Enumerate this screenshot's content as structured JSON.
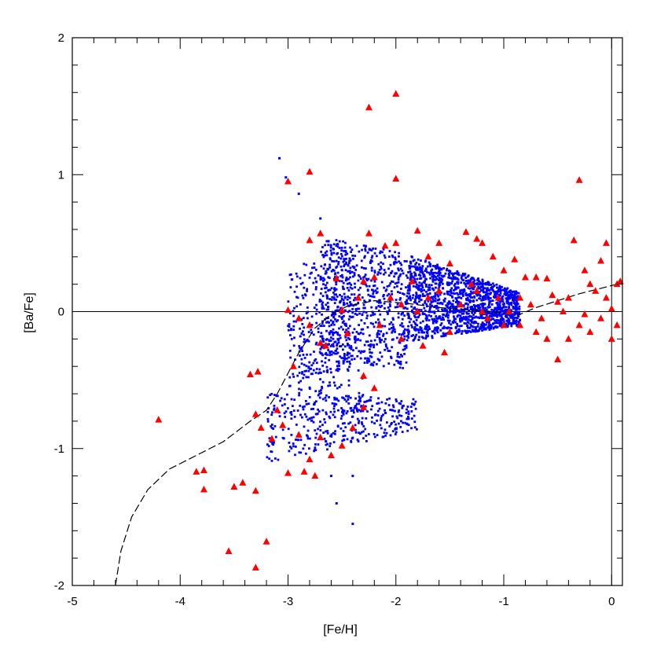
{
  "chart_data": {
    "type": "scatter",
    "title": "",
    "xlabel": "[Fe/H]",
    "ylabel": "[Ba/Fe]",
    "xlim": [
      -5,
      0.1
    ],
    "ylim": [
      -2,
      2
    ],
    "x_ticks": [
      -5,
      -4,
      -3,
      -2,
      -1,
      0
    ],
    "y_ticks": [
      -2,
      -1,
      0,
      1,
      2
    ],
    "reference_lines": {
      "y": 0,
      "x": 0
    },
    "grid": false,
    "colors": {
      "model_points": "#0000ff",
      "observed_stars": "#ff0000",
      "model_track": "#000000",
      "axes": "#000000"
    },
    "model_track": {
      "style": "dashed",
      "points": [
        [
          -4.6,
          -2.0
        ],
        [
          -4.55,
          -1.75
        ],
        [
          -4.45,
          -1.5
        ],
        [
          -4.3,
          -1.3
        ],
        [
          -4.1,
          -1.15
        ],
        [
          -3.85,
          -1.05
        ],
        [
          -3.6,
          -0.95
        ],
        [
          -3.35,
          -0.8
        ],
        [
          -3.2,
          -0.72
        ],
        [
          -3.1,
          -0.6
        ],
        [
          -3.0,
          -0.45
        ],
        [
          -2.9,
          -0.3
        ],
        [
          -2.75,
          -0.12
        ],
        [
          -2.6,
          -0.02
        ],
        [
          -2.45,
          0.04
        ],
        [
          -2.2,
          0.08
        ],
        [
          -1.9,
          0.06
        ],
        [
          -1.6,
          0.03
        ],
        [
          -1.3,
          0.01
        ],
        [
          -1.0,
          -0.01
        ],
        [
          -0.85,
          -0.02
        ],
        [
          -0.7,
          0.03
        ],
        [
          -0.5,
          0.08
        ],
        [
          -0.3,
          0.13
        ],
        [
          -0.1,
          0.17
        ],
        [
          0.05,
          0.2
        ]
      ]
    },
    "observed_stars": {
      "marker": "triangle",
      "points": [
        [
          -4.2,
          -0.79
        ],
        [
          -3.85,
          -1.17
        ],
        [
          -3.78,
          -1.16
        ],
        [
          -3.78,
          -1.3
        ],
        [
          -3.55,
          -1.75
        ],
        [
          -3.5,
          -1.28
        ],
        [
          -3.42,
          -1.25
        ],
        [
          -3.35,
          -0.46
        ],
        [
          -3.3,
          -1.31
        ],
        [
          -3.28,
          -0.44
        ],
        [
          -3.3,
          -1.87
        ],
        [
          -3.2,
          -1.68
        ],
        [
          -3.3,
          -0.75
        ],
        [
          -3.25,
          -0.85
        ],
        [
          -3.15,
          -0.93
        ],
        [
          -3.1,
          -0.72
        ],
        [
          -3.05,
          -0.83
        ],
        [
          -3.0,
          -1.18
        ],
        [
          -2.95,
          -0.4
        ],
        [
          -2.9,
          -0.9
        ],
        [
          -2.85,
          -1.17
        ],
        [
          -2.8,
          -1.08
        ],
        [
          -2.75,
          -1.2
        ],
        [
          -2.7,
          -0.92
        ],
        [
          -2.6,
          -1.05
        ],
        [
          -2.5,
          -0.98
        ],
        [
          -2.4,
          -0.85
        ],
        [
          -2.3,
          -0.7
        ],
        [
          -2.3,
          -0.47
        ],
        [
          -2.2,
          -0.56
        ],
        [
          -3.0,
          0.95
        ],
        [
          -2.8,
          1.02
        ],
        [
          -2.7,
          0.57
        ],
        [
          -2.8,
          0.52
        ],
        [
          -3.0,
          0.01
        ],
        [
          -2.9,
          -0.05
        ],
        [
          -2.8,
          -0.1
        ],
        [
          -2.7,
          -0.23
        ],
        [
          -2.65,
          -0.25
        ],
        [
          -2.55,
          0.24
        ],
        [
          -2.5,
          0.01
        ],
        [
          -2.45,
          -0.16
        ],
        [
          -2.3,
          0.22
        ],
        [
          -2.25,
          1.49
        ],
        [
          -2.0,
          1.59
        ],
        [
          -2.0,
          0.97
        ],
        [
          -2.1,
          0.48
        ],
        [
          -2.25,
          0.57
        ],
        [
          -2.0,
          0.5
        ],
        [
          -1.8,
          0.59
        ],
        [
          -1.7,
          0.4
        ],
        [
          -1.6,
          0.5
        ],
        [
          -1.5,
          0.35
        ],
        [
          -1.35,
          0.58
        ],
        [
          -1.25,
          0.53
        ],
        [
          -1.2,
          0.5
        ],
        [
          -1.1,
          0.4
        ],
        [
          -1.0,
          0.3
        ],
        [
          -0.9,
          0.38
        ],
        [
          -0.85,
          0.1
        ],
        [
          -0.8,
          0.25
        ],
        [
          -0.7,
          0.25
        ],
        [
          -0.6,
          0.24
        ],
        [
          -0.5,
          0.07
        ],
        [
          -0.4,
          0.1
        ],
        [
          -0.35,
          0.52
        ],
        [
          -0.3,
          0.96
        ],
        [
          -0.25,
          0.3
        ],
        [
          -0.2,
          0.2
        ],
        [
          -0.1,
          0.37
        ],
        [
          -0.05,
          0.5
        ],
        [
          0.05,
          0.2
        ],
        [
          0.08,
          0.22
        ],
        [
          -0.5,
          -0.35
        ],
        [
          -0.6,
          -0.2
        ],
        [
          -0.7,
          -0.15
        ],
        [
          -0.4,
          -0.2
        ],
        [
          -0.3,
          -0.1
        ],
        [
          -0.2,
          -0.15
        ],
        [
          -0.1,
          -0.05
        ],
        [
          0.0,
          -0.2
        ],
        [
          0.05,
          -0.1
        ],
        [
          -0.05,
          0.1
        ],
        [
          0.0,
          0.02
        ],
        [
          -0.15,
          0.15
        ],
        [
          -0.25,
          -0.02
        ],
        [
          -0.45,
          0.0
        ],
        [
          -0.55,
          0.12
        ],
        [
          -0.65,
          -0.05
        ],
        [
          -0.75,
          0.05
        ],
        [
          -0.85,
          -0.1
        ],
        [
          -0.95,
          0.0
        ],
        [
          -1.05,
          0.1
        ],
        [
          -1.15,
          -0.05
        ],
        [
          -1.25,
          0.15
        ],
        [
          -1.4,
          0.05
        ],
        [
          -1.5,
          -0.15
        ],
        [
          -1.55,
          -0.3
        ],
        [
          -1.6,
          0.15
        ],
        [
          -1.7,
          0.1
        ],
        [
          -1.8,
          0.0
        ],
        [
          -1.85,
          0.22
        ],
        [
          -1.95,
          0.05
        ],
        [
          -2.05,
          0.1
        ],
        [
          -2.15,
          -0.1
        ],
        [
          -2.2,
          0.25
        ],
        [
          -2.35,
          0.1
        ],
        [
          -1.95,
          -0.2
        ],
        [
          -1.75,
          -0.25
        ],
        [
          -1.3,
          0.2
        ],
        [
          -1.2,
          0.0
        ],
        [
          -1.0,
          -0.1
        ]
      ]
    },
    "model_points": {
      "marker": "small-square"
    }
  }
}
